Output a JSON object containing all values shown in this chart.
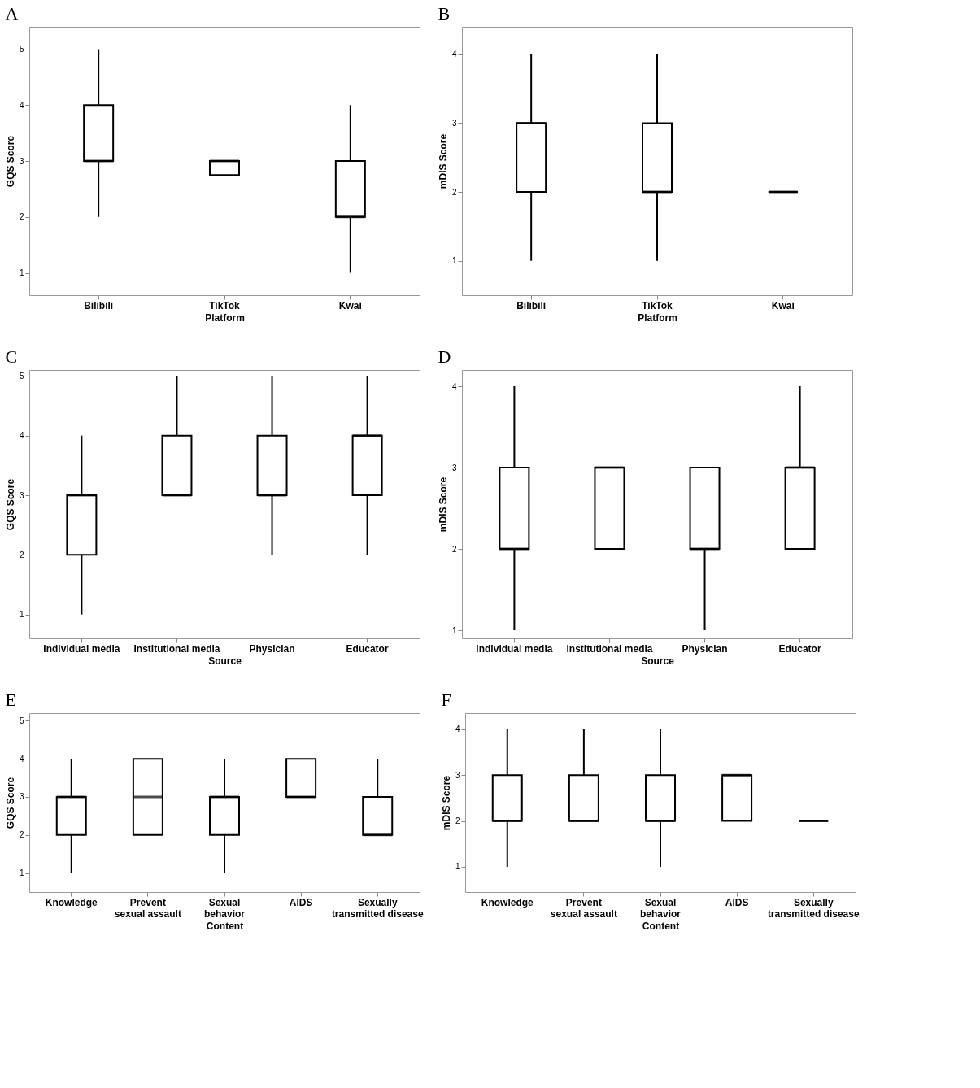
{
  "chart_data": [
    {
      "type": "box",
      "title": "A",
      "xlabel": "Platform",
      "ylabel": "GQS Score",
      "categories": [
        "Bilibili",
        "TikTok",
        "Kwai"
      ],
      "ylim": [
        0.6,
        5.4
      ],
      "yticks": [
        1,
        2,
        3,
        4,
        5
      ],
      "grid": false,
      "boxes": [
        {
          "low": 2,
          "q1": 3,
          "median": 3,
          "q3": 4,
          "high": 5
        },
        {
          "low": 2.75,
          "q1": 2.75,
          "median": 3,
          "q3": 3,
          "high": 3
        },
        {
          "low": 1,
          "q1": 2,
          "median": 2,
          "q3": 3,
          "high": 4
        }
      ]
    },
    {
      "type": "box",
      "title": "B",
      "xlabel": "Platform",
      "ylabel": "mDIS Score",
      "categories": [
        "Bilibili",
        "TikTok",
        "Kwai"
      ],
      "ylim": [
        0.5,
        4.4
      ],
      "yticks": [
        1,
        2,
        3,
        4
      ],
      "grid": false,
      "boxes": [
        {
          "low": 1,
          "q1": 2,
          "median": 3,
          "q3": 3,
          "high": 4
        },
        {
          "low": 1,
          "q1": 2,
          "median": 2,
          "q3": 3,
          "high": 4
        },
        {
          "low": 2,
          "q1": 2,
          "median": 2,
          "q3": 2,
          "high": 2
        }
      ]
    },
    {
      "type": "box",
      "title": "C",
      "xlabel": "Source",
      "ylabel": "GQS Score",
      "categories": [
        "Individual media",
        "Institutional media",
        "Physician",
        "Educator"
      ],
      "ylim": [
        0.6,
        5.1
      ],
      "yticks": [
        1,
        2,
        3,
        4,
        5
      ],
      "grid": false,
      "boxes": [
        {
          "low": 1,
          "q1": 2,
          "median": 3,
          "q3": 3,
          "high": 4
        },
        {
          "low": 3,
          "q1": 3,
          "median": 3,
          "q3": 4,
          "high": 5
        },
        {
          "low": 2,
          "q1": 3,
          "median": 3,
          "q3": 4,
          "high": 5
        },
        {
          "low": 2,
          "q1": 3,
          "median": 4,
          "q3": 4,
          "high": 5
        }
      ]
    },
    {
      "type": "box",
      "title": "D",
      "xlabel": "Source",
      "ylabel": "mDIS Score",
      "categories": [
        "Individual media",
        "Institutional media",
        "Physician",
        "Educator"
      ],
      "ylim": [
        0.9,
        4.2
      ],
      "yticks": [
        1,
        2,
        3,
        4
      ],
      "grid": false,
      "boxes": [
        {
          "low": 1,
          "q1": 2,
          "median": 2,
          "q3": 3,
          "high": 4
        },
        {
          "low": 2,
          "q1": 2,
          "median": 3,
          "q3": 3,
          "high": 3
        },
        {
          "low": 1,
          "q1": 2,
          "median": 2,
          "q3": 3,
          "high": 3
        },
        {
          "low": 2,
          "q1": 2,
          "median": 3,
          "q3": 3,
          "high": 4
        }
      ]
    },
    {
      "type": "box",
      "title": "E",
      "xlabel": "Content",
      "ylabel": "GQS Score",
      "categories": [
        "Knowledge",
        "Prevent sexual assault",
        "Sexual behavior",
        "AIDS",
        "Sexually transmitted disease"
      ],
      "ylim": [
        0.5,
        5.2
      ],
      "yticks": [
        1,
        2,
        3,
        4,
        5
      ],
      "grid": false,
      "boxes": [
        {
          "low": 1,
          "q1": 2,
          "median": 3,
          "q3": 3,
          "high": 4
        },
        {
          "low": 2,
          "q1": 2,
          "median": 3,
          "q3": 4,
          "high": 4
        },
        {
          "low": 1,
          "q1": 2,
          "median": 3,
          "q3": 3,
          "high": 4
        },
        {
          "low": 3,
          "q1": 3,
          "median": 3,
          "q3": 4,
          "high": 4
        },
        {
          "low": 2,
          "q1": 2,
          "median": 2,
          "q3": 3,
          "high": 4
        }
      ]
    },
    {
      "type": "box",
      "title": "F",
      "xlabel": "Content",
      "ylabel": "mDIS Score",
      "categories": [
        "Knowledge",
        "Prevent sexual assault",
        "Sexual behavior",
        "AIDS",
        "Sexually transmitted disease"
      ],
      "ylim": [
        0.45,
        4.35
      ],
      "yticks": [
        1,
        2,
        3,
        4
      ],
      "grid": false,
      "boxes": [
        {
          "low": 1,
          "q1": 2,
          "median": 2,
          "q3": 3,
          "high": 4
        },
        {
          "low": 2,
          "q1": 2,
          "median": 2,
          "q3": 3,
          "high": 4
        },
        {
          "low": 1,
          "q1": 2,
          "median": 2,
          "q3": 3,
          "high": 4
        },
        {
          "low": 2,
          "q1": 2,
          "median": 3,
          "q3": 3,
          "high": 3
        },
        {
          "low": 2,
          "q1": 2,
          "median": 2,
          "q3": 2,
          "high": 2
        }
      ]
    }
  ]
}
